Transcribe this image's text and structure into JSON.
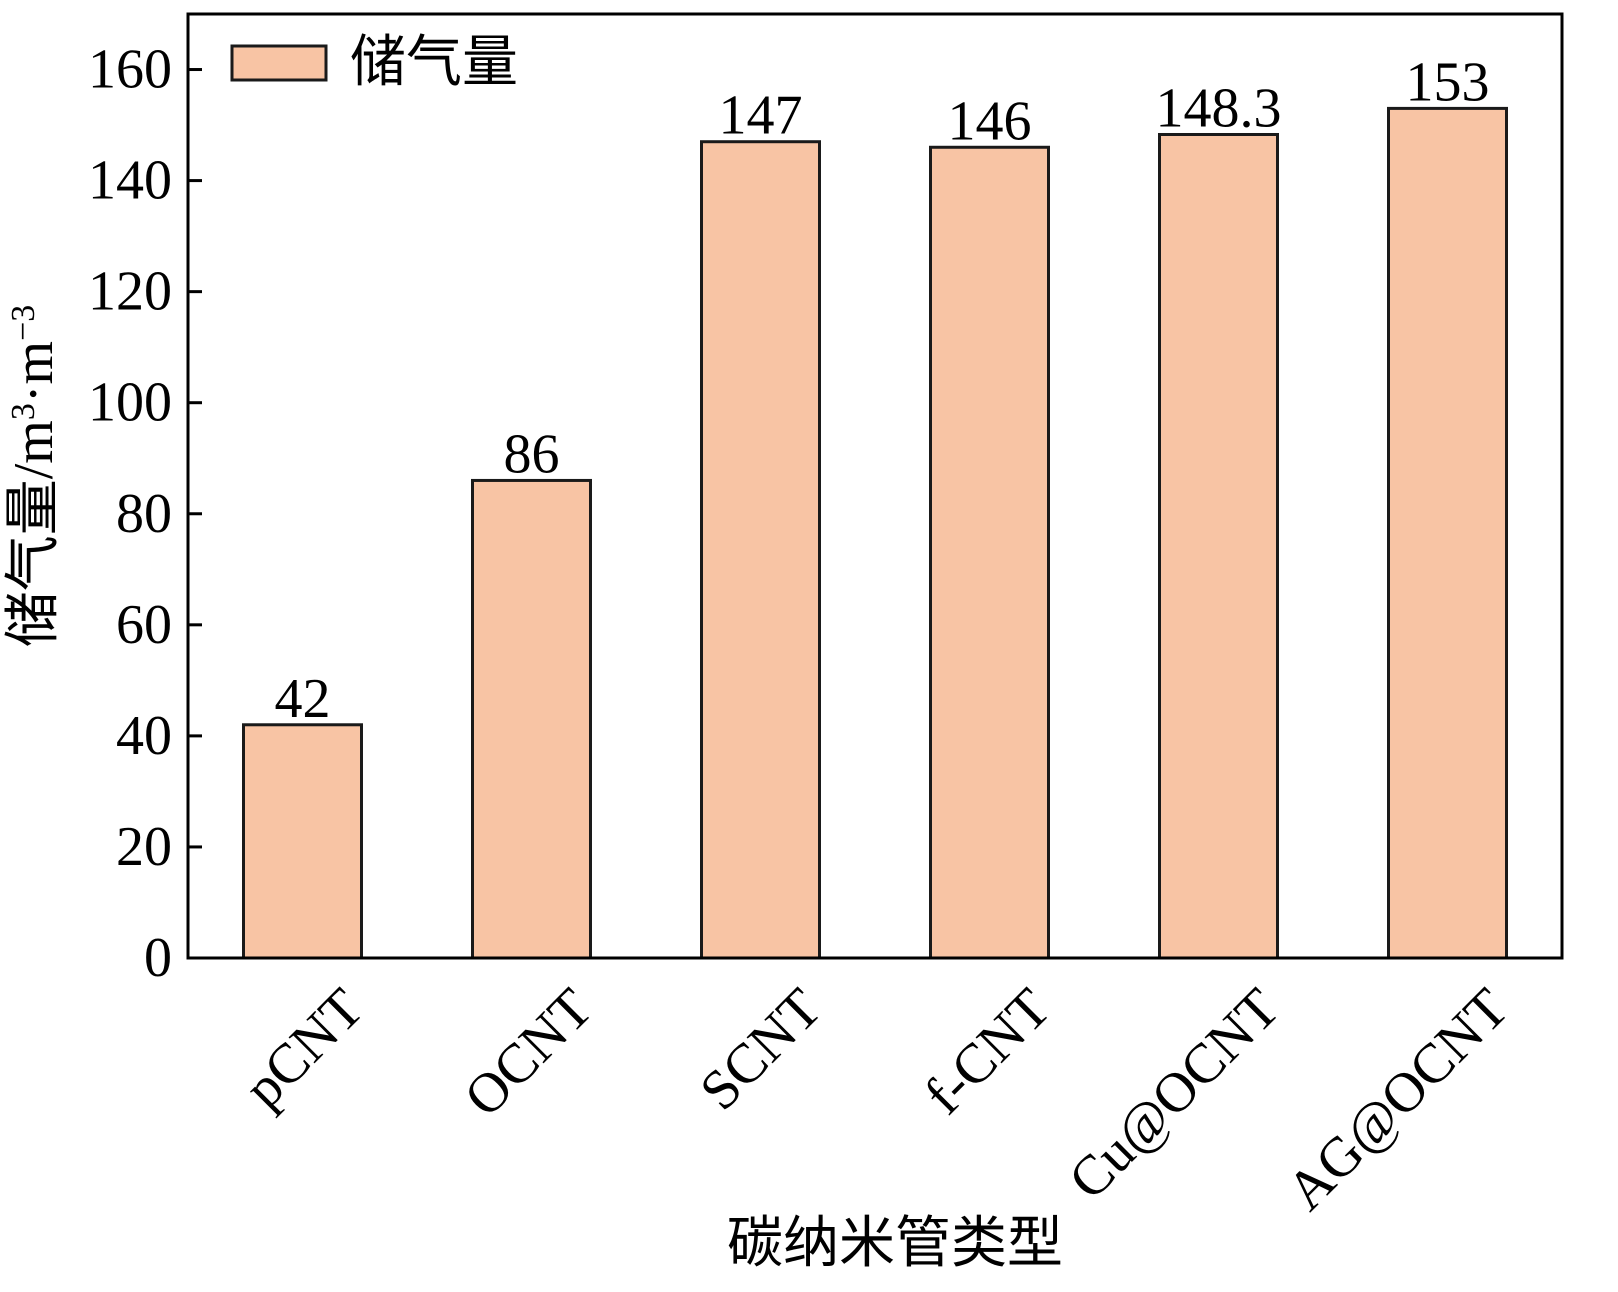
{
  "chart_data": {
    "type": "bar",
    "categories": [
      "pCNT",
      "OCNT",
      "SCNT",
      "f-CNT",
      "Cu@OCNT",
      "AG@OCNT"
    ],
    "series": [
      {
        "name": "储气量",
        "values": [
          42,
          86,
          147,
          146,
          148.3,
          153
        ],
        "value_labels": [
          "42",
          "86",
          "147",
          "146",
          "148.3",
          "153"
        ],
        "color": "#F8C4A4"
      }
    ],
    "xlabel": "碳纳米管类型",
    "ylabel_main": "储气量/m",
    "ylabel_sup1": "3",
    "ylabel_mid": "·m",
    "ylabel_sup2": "−3",
    "ylim": [
      0,
      170
    ],
    "yticks": [
      0,
      20,
      40,
      60,
      80,
      100,
      120,
      140,
      160
    ],
    "grid": false,
    "legend_position": "top-left",
    "bar_edge_color": "#1a1a1a"
  }
}
